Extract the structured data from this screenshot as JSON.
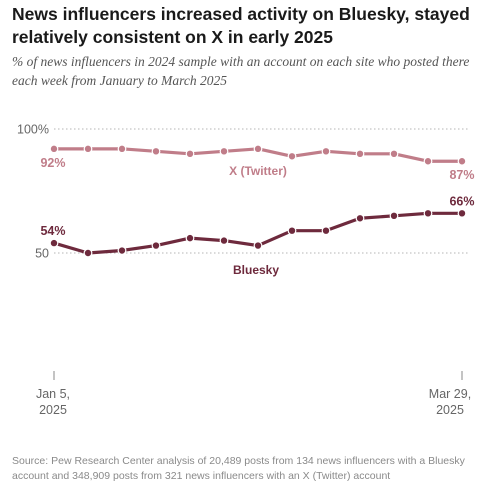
{
  "title": "News influencers increased activity on Bluesky, stayed relatively consistent on X in early 2025",
  "subtitle": "% of news influencers in 2024 sample with an account on each site who posted there each week from January to March 2025",
  "source": "Source: Pew Research Center analysis of 20,489 posts from 134 news influencers with a Bluesky account and 348,909 posts from 321 news influencers with an X (Twitter) account",
  "chart_data": {
    "type": "line",
    "x": [
      "2025-01-05",
      "2025-01-12",
      "2025-01-19",
      "2025-01-26",
      "2025-02-02",
      "2025-02-09",
      "2025-02-16",
      "2025-02-23",
      "2025-03-02",
      "2025-03-09",
      "2025-03-16",
      "2025-03-23",
      "2025-03-29"
    ],
    "x_tick_labels": [
      {
        "line1": "Jan 5,",
        "line2": "2025",
        "index": 0
      },
      {
        "line1": "Mar 29,",
        "line2": "2025",
        "index": 12
      }
    ],
    "y_tick_labels": [
      {
        "value": 100,
        "label": "100%"
      },
      {
        "value": 50,
        "label": "50"
      }
    ],
    "ylim": [
      0,
      100
    ],
    "grid": true,
    "series": [
      {
        "name": "X (Twitter)",
        "color": "#c07d89",
        "values": [
          92,
          92,
          92,
          91,
          90,
          91,
          92,
          89,
          91,
          90,
          90,
          87,
          87
        ],
        "start_label": "92%",
        "end_label": "87%"
      },
      {
        "name": "Bluesky",
        "color": "#6e2a3d",
        "values": [
          54,
          50,
          51,
          53,
          56,
          55,
          53,
          59,
          59,
          64,
          65,
          66,
          66
        ],
        "start_label": "54%",
        "end_label": "66%"
      }
    ]
  }
}
